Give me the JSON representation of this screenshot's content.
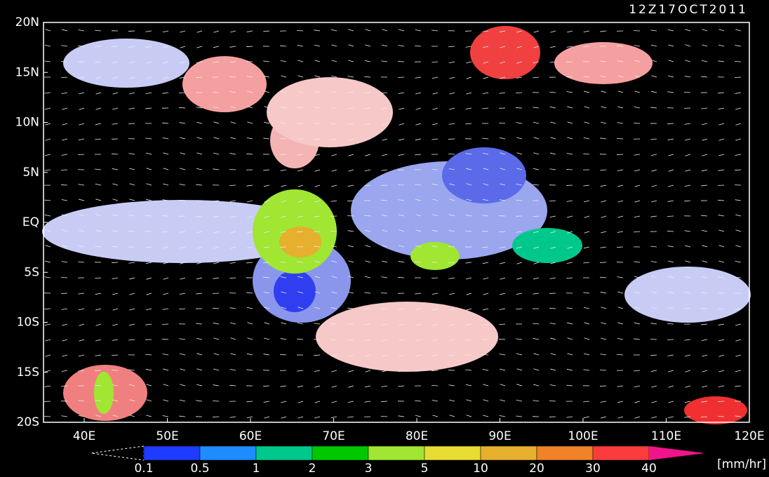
{
  "map": {
    "title": "12Z17OCT2011",
    "lat_labels": [
      "20N",
      "15N",
      "10N",
      "5N",
      "EQ",
      "5S",
      "10S",
      "15S",
      "20S"
    ],
    "lon_labels": [
      "40E",
      "50E",
      "60E",
      "70E",
      "80E",
      "90E",
      "100E",
      "110E",
      "120E"
    ],
    "colorbar": {
      "labels": [
        "0.1",
        "0.5",
        "1",
        "2",
        "3",
        "5",
        "10",
        "20",
        "30",
        "40"
      ],
      "colors": [
        "#1e3cff",
        "#1e8cff",
        "#00c88c",
        "#00c800",
        "#a0e632",
        "#e6dc32",
        "#e6af2d",
        "#f08228",
        "#fa3c3c"
      ],
      "over_color": "#f0148c",
      "unit": "[mm/hr]"
    }
  }
}
